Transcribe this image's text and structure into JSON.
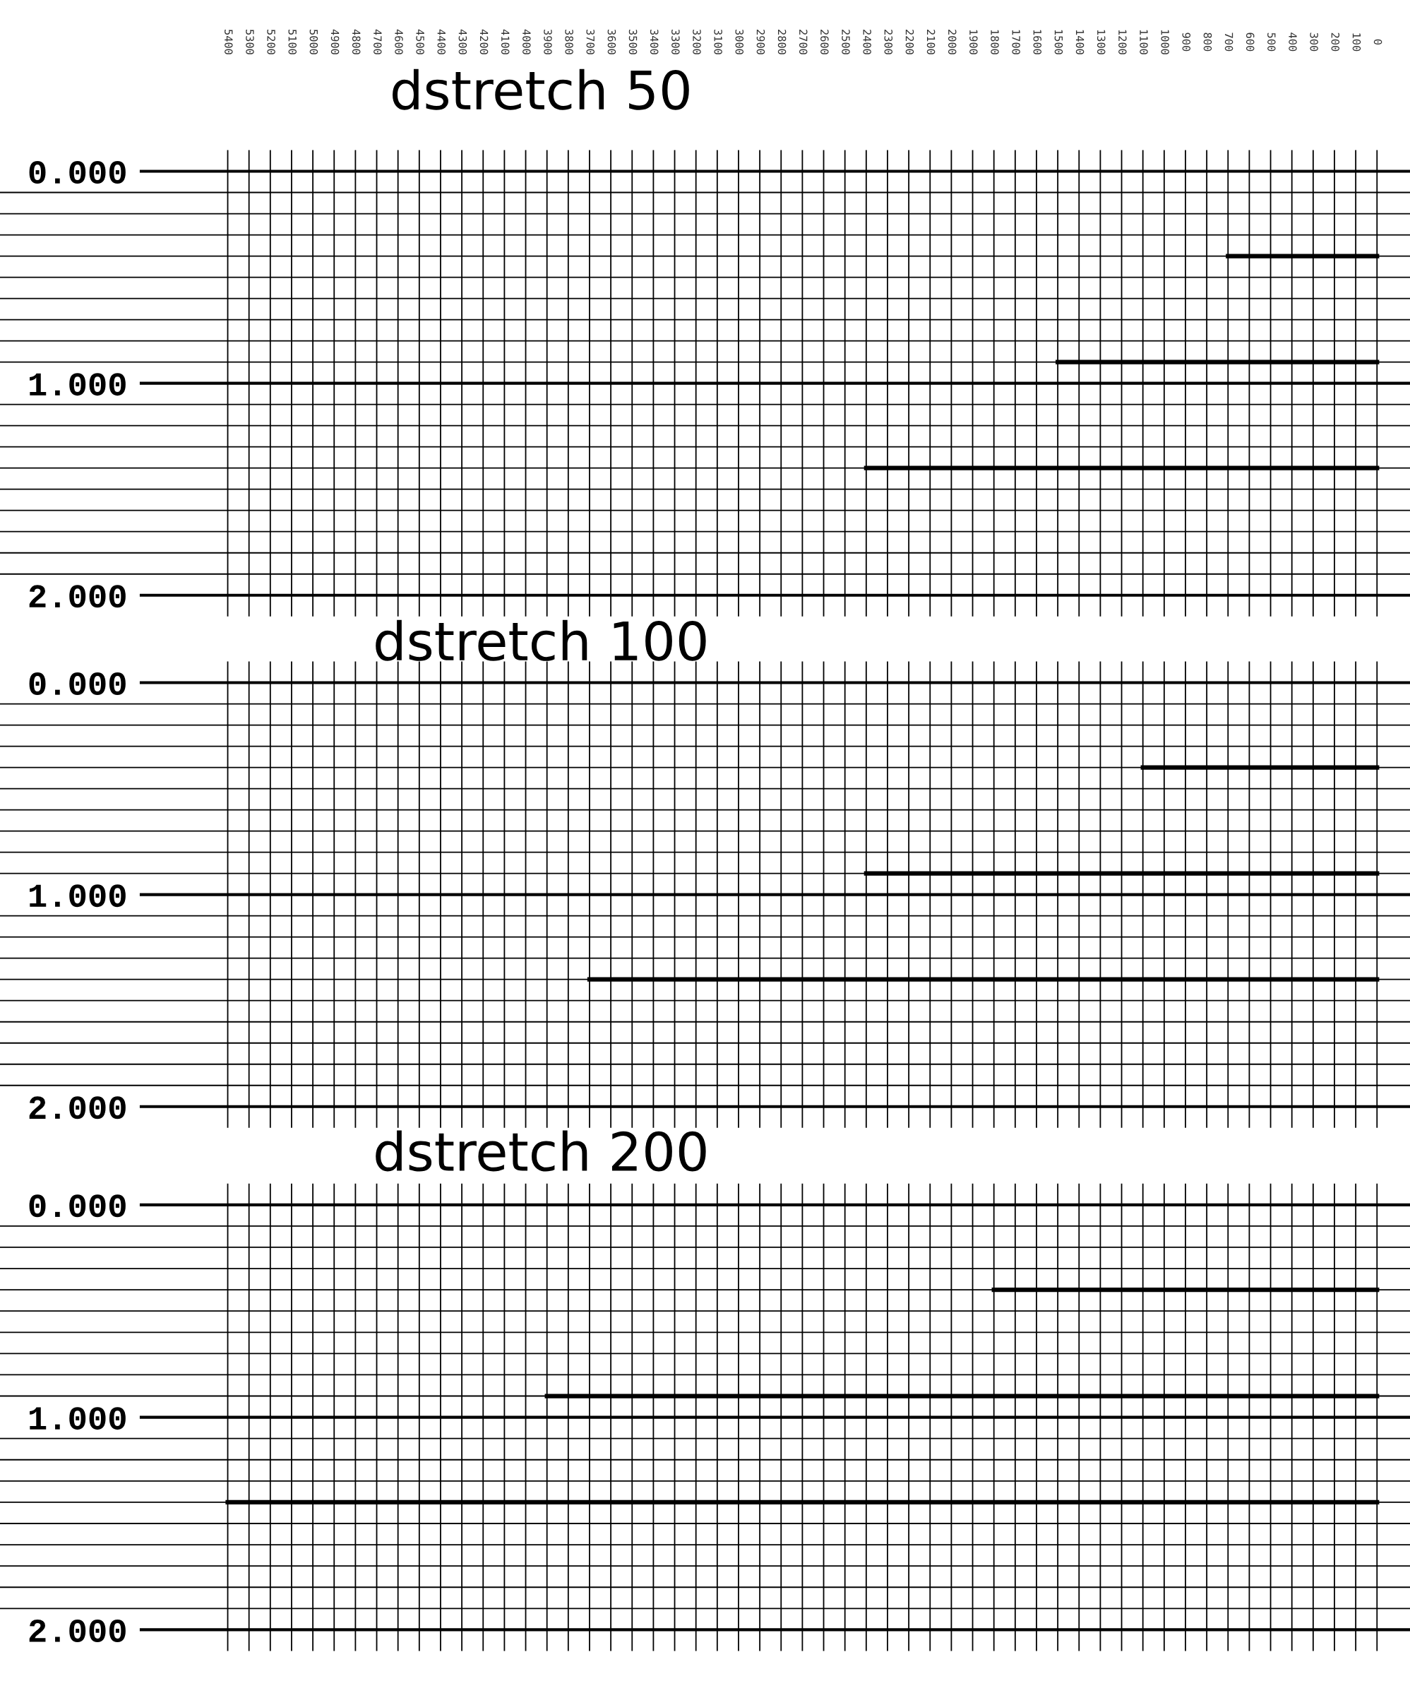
{
  "chart_data": [
    {
      "type": "line",
      "title": "dstretch 50",
      "xlim": [
        6470,
        -155
      ],
      "ylim": [
        2.1,
        -0.1
      ],
      "tick_labels": "y",
      "x2lim": [
        6470,
        -155
      ],
      "x2ticks": [
        0,
        100,
        200,
        300,
        400,
        500,
        600,
        700,
        800,
        900,
        1000,
        1100,
        1200,
        1300,
        1400,
        1500,
        1600,
        1700,
        1800,
        1900,
        2000,
        2100,
        2200,
        2300,
        2400,
        2500,
        2600,
        2700,
        2800,
        2900,
        3000,
        3100,
        3200,
        3300,
        3400,
        3500,
        3600,
        3700,
        3800,
        3900,
        4000,
        4100,
        4200,
        4300,
        4400,
        4500,
        4600,
        4700,
        4800,
        4900,
        5000,
        5100,
        5200,
        5300,
        5400
      ],
      "xticks": [
        0,
        100,
        200,
        300,
        400,
        500,
        600,
        700,
        800,
        900,
        1000,
        1100,
        1200,
        1300,
        1400,
        1500,
        1600,
        1700,
        1800,
        1900,
        2000,
        2100,
        2200,
        2300,
        2400,
        2500,
        2600,
        2700,
        2800,
        2900,
        3000,
        3100,
        3200,
        3300,
        3400,
        3500,
        3600,
        3700,
        3800,
        3900,
        4000,
        4100,
        4200,
        4300,
        4400,
        4500,
        4600,
        4700,
        4800,
        4900,
        5000,
        5100,
        5200,
        5300,
        5400
      ],
      "yticks": [
        {
          "value": 0,
          "label": "0.000"
        },
        {
          "value": 0.1,
          "label": null
        },
        {
          "value": 0.2,
          "label": null
        },
        {
          "value": 0.3,
          "label": null
        },
        {
          "value": 0.4,
          "label": null
        },
        {
          "value": 0.5,
          "label": null
        },
        {
          "value": 0.6,
          "label": null
        },
        {
          "value": 0.7,
          "label": null
        },
        {
          "value": 0.8,
          "label": null
        },
        {
          "value": 0.9,
          "label": null
        },
        {
          "value": 1,
          "label": "1.000"
        },
        {
          "value": 1.1,
          "label": null
        },
        {
          "value": 1.2,
          "label": null
        },
        {
          "value": 1.3,
          "label": null
        },
        {
          "value": 1.4,
          "label": null
        },
        {
          "value": 1.5,
          "label": null
        },
        {
          "value": 1.6,
          "label": null
        },
        {
          "value": 1.7,
          "label": null
        },
        {
          "value": 1.8,
          "label": null
        },
        {
          "value": 1.9,
          "label": null
        },
        {
          "value": 2,
          "label": "2.000"
        }
      ],
      "grid": true,
      "series": [
        {
          "color": "#000000",
          "x": [
            0,
            700
          ],
          "values": [
            0.4,
            0.4
          ]
        },
        {
          "color": "#000000",
          "x": [
            0,
            1500
          ],
          "values": [
            0.9,
            0.9
          ]
        },
        {
          "color": "#000000",
          "x": [
            0,
            2400
          ],
          "values": [
            1.4,
            1.4
          ]
        }
      ]
    },
    {
      "type": "line",
      "title": "dstretch 100",
      "xlim": [
        6470,
        -155
      ],
      "ylim": [
        2.1,
        -0.1
      ],
      "tick_labels": "y",
      "xticks": [
        0,
        100,
        200,
        300,
        400,
        500,
        600,
        700,
        800,
        900,
        1000,
        1100,
        1200,
        1300,
        1400,
        1500,
        1600,
        1700,
        1800,
        1900,
        2000,
        2100,
        2200,
        2300,
        2400,
        2500,
        2600,
        2700,
        2800,
        2900,
        3000,
        3100,
        3200,
        3300,
        3400,
        3500,
        3600,
        3700,
        3800,
        3900,
        4000,
        4100,
        4200,
        4300,
        4400,
        4500,
        4600,
        4700,
        4800,
        4900,
        5000,
        5100,
        5200,
        5300,
        5400
      ],
      "yticks": [
        {
          "value": 0,
          "label": "0.000"
        },
        {
          "value": 0.1,
          "label": null
        },
        {
          "value": 0.2,
          "label": null
        },
        {
          "value": 0.3,
          "label": null
        },
        {
          "value": 0.4,
          "label": null
        },
        {
          "value": 0.5,
          "label": null
        },
        {
          "value": 0.6,
          "label": null
        },
        {
          "value": 0.7,
          "label": null
        },
        {
          "value": 0.8,
          "label": null
        },
        {
          "value": 0.9,
          "label": null
        },
        {
          "value": 1,
          "label": "1.000"
        },
        {
          "value": 1.1,
          "label": null
        },
        {
          "value": 1.2,
          "label": null
        },
        {
          "value": 1.3,
          "label": null
        },
        {
          "value": 1.4,
          "label": null
        },
        {
          "value": 1.5,
          "label": null
        },
        {
          "value": 1.6,
          "label": null
        },
        {
          "value": 1.7,
          "label": null
        },
        {
          "value": 1.8,
          "label": null
        },
        {
          "value": 1.9,
          "label": null
        },
        {
          "value": 2,
          "label": "2.000"
        }
      ],
      "grid": true,
      "series": [
        {
          "color": "#000000",
          "x": [
            0,
            1100
          ],
          "values": [
            0.4,
            0.4
          ]
        },
        {
          "color": "#000000",
          "x": [
            0,
            2400
          ],
          "values": [
            0.9,
            0.9
          ]
        },
        {
          "color": "#000000",
          "x": [
            0,
            3700
          ],
          "values": [
            1.4,
            1.4
          ]
        }
      ]
    },
    {
      "type": "line",
      "title": "dstretch 200",
      "xlim": [
        6470,
        -155
      ],
      "ylim": [
        2.1,
        -0.1
      ],
      "tick_labels": "y",
      "xticks": [
        0,
        100,
        200,
        300,
        400,
        500,
        600,
        700,
        800,
        900,
        1000,
        1100,
        1200,
        1300,
        1400,
        1500,
        1600,
        1700,
        1800,
        1900,
        2000,
        2100,
        2200,
        2300,
        2400,
        2500,
        2600,
        2700,
        2800,
        2900,
        3000,
        3100,
        3200,
        3300,
        3400,
        3500,
        3600,
        3700,
        3800,
        3900,
        4000,
        4100,
        4200,
        4300,
        4400,
        4500,
        4600,
        4700,
        4800,
        4900,
        5000,
        5100,
        5200,
        5300,
        5400
      ],
      "yticks": [
        {
          "value": 0,
          "label": "0.000"
        },
        {
          "value": 0.1,
          "label": null
        },
        {
          "value": 0.2,
          "label": null
        },
        {
          "value": 0.3,
          "label": null
        },
        {
          "value": 0.4,
          "label": null
        },
        {
          "value": 0.5,
          "label": null
        },
        {
          "value": 0.6,
          "label": null
        },
        {
          "value": 0.7,
          "label": null
        },
        {
          "value": 0.8,
          "label": null
        },
        {
          "value": 0.9,
          "label": null
        },
        {
          "value": 1,
          "label": "1.000"
        },
        {
          "value": 1.1,
          "label": null
        },
        {
          "value": 1.2,
          "label": null
        },
        {
          "value": 1.3,
          "label": null
        },
        {
          "value": 1.4,
          "label": null
        },
        {
          "value": 1.5,
          "label": null
        },
        {
          "value": 1.6,
          "label": null
        },
        {
          "value": 1.7,
          "label": null
        },
        {
          "value": 1.8,
          "label": null
        },
        {
          "value": 1.9,
          "label": null
        },
        {
          "value": 2,
          "label": "2.000"
        }
      ],
      "grid": true,
      "series": [
        {
          "color": "#000000",
          "x": [
            0,
            1800
          ],
          "values": [
            0.4,
            0.4
          ]
        },
        {
          "color": "#000000",
          "x": [
            0,
            3900
          ],
          "values": [
            0.9,
            0.9
          ]
        },
        {
          "color": "#000000",
          "x": [
            0,
            5400
          ],
          "values": [
            1.4,
            1.4
          ]
        }
      ]
    }
  ]
}
